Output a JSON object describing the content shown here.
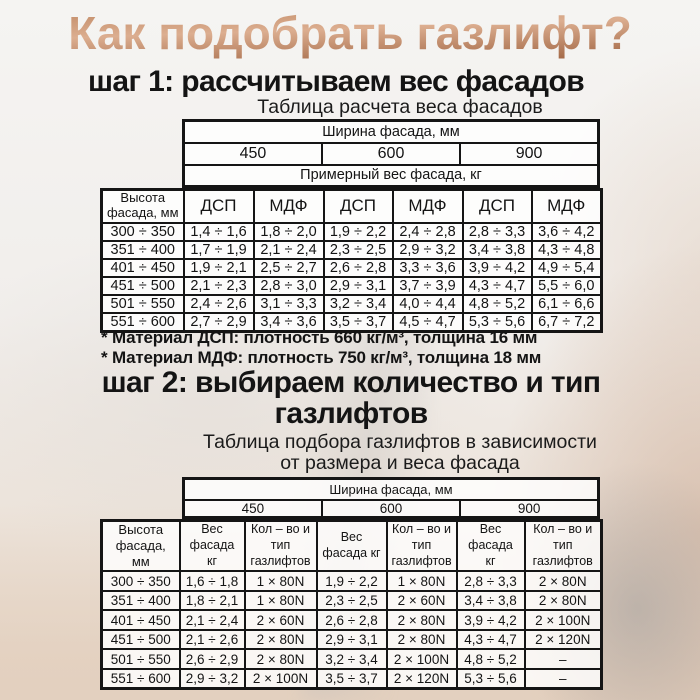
{
  "title": "Как подобрать газлифт?",
  "colors": {
    "title_copper_light": "#dcae90",
    "title_copper_dark": "#a06543",
    "text": "#141414",
    "table_border": "#151515",
    "background_beige": "#e2cfc0"
  },
  "step1": {
    "heading": "шаг 1: рассчитываем вес фасадов",
    "table_title": "Таблица расчета веса фасадов"
  },
  "table1": {
    "width_header": "Ширина фасада, мм",
    "width_values": [
      "450",
      "600",
      "900"
    ],
    "weight_header": "Примерный вес фасада, кг",
    "row_header": "Высота фасада, мм",
    "col_headers": [
      "ДСП",
      "МДФ",
      "ДСП",
      "МДФ",
      "ДСП",
      "МДФ"
    ],
    "rows": [
      {
        "height": "300 ÷ 350",
        "cells": [
          "1,4 ÷ 1,6",
          "1,8 ÷ 2,0",
          "1,9 ÷ 2,2",
          "2,4 ÷ 2,8",
          "2,8 ÷ 3,3",
          "3,6 ÷ 4,2"
        ]
      },
      {
        "height": "351 ÷ 400",
        "cells": [
          "1,7 ÷ 1,9",
          "2,1 ÷ 2,4",
          "2,3 ÷ 2,5",
          "2,9 ÷ 3,2",
          "3,4 ÷ 3,8",
          "4,3 ÷ 4,8"
        ]
      },
      {
        "height": "401 ÷ 450",
        "cells": [
          "1,9 ÷ 2,1",
          "2,5 ÷ 2,7",
          "2,6 ÷ 2,8",
          "3,3 ÷ 3,6",
          "3,9 ÷ 4,2",
          "4,9 ÷ 5,4"
        ]
      },
      {
        "height": "451 ÷ 500",
        "cells": [
          "2,1 ÷ 2,3",
          "2,8 ÷ 3,0",
          "2,9 ÷ 3,1",
          "3,7 ÷ 3,9",
          "4,3 ÷ 4,7",
          "5,5 ÷ 6,0"
        ]
      },
      {
        "height": "501 ÷ 550",
        "cells": [
          "2,4 ÷ 2,6",
          "3,1 ÷ 3,3",
          "3,2 ÷ 3,4",
          "4,0 ÷ 4,4",
          "4,8 ÷ 5,2",
          "6,1 ÷ 6,6"
        ]
      },
      {
        "height": "551 ÷ 600",
        "cells": [
          "2,7 ÷ 2,9",
          "3,4 ÷ 3,6",
          "3,5 ÷ 3,7",
          "4,5 ÷ 4,7",
          "5,3 ÷ 5,6",
          "6,7 ÷ 7,2"
        ]
      }
    ]
  },
  "notes": {
    "line1": "* Материал ДСП: плотность 660 кг/м³, толщина 16 мм",
    "line2": "* Материал МДФ: плотность 750 кг/м³, толщина 18 мм"
  },
  "step2": {
    "heading_line1": "шаг 2: выбираем количество и тип",
    "heading_line2": "газлифтов",
    "table_title_line1": "Таблица подбора газлифтов в зависимости",
    "table_title_line2": "от размера и веса фасада"
  },
  "table2": {
    "width_header": "Ширина фасада, мм",
    "width_values": [
      "450",
      "600",
      "900"
    ],
    "row_header": "Высота фасада, мм",
    "col_headers": [
      "Вес фасада кг",
      "Кол – во и тип газлифтов",
      "Вес фасада кг",
      "Кол – во и тип газлифтов",
      "Вес фасада кг",
      "Кол – во и тип газлифтов"
    ],
    "rows": [
      {
        "height": "300 ÷ 350",
        "cells": [
          "1,6 ÷ 1,8",
          "1 × 80N",
          "1,9 ÷ 2,2",
          "1 × 80N",
          "2,8 ÷ 3,3",
          "2 × 80N"
        ]
      },
      {
        "height": "351 ÷ 400",
        "cells": [
          "1,8 ÷ 2,1",
          "1 × 80N",
          "2,3 ÷ 2,5",
          "2 × 60N",
          "3,4 ÷ 3,8",
          "2 × 80N"
        ]
      },
      {
        "height": "401 ÷ 450",
        "cells": [
          "2,1 ÷ 2,4",
          "2 × 60N",
          "2,6 ÷ 2,8",
          "2 × 80N",
          "3,9 ÷ 4,2",
          "2 × 100N"
        ]
      },
      {
        "height": "451 ÷ 500",
        "cells": [
          "2,1 ÷ 2,6",
          "2 × 80N",
          "2,9 ÷ 3,1",
          "2 × 80N",
          "4,3 ÷ 4,7",
          "2 × 120N"
        ]
      },
      {
        "height": "501 ÷ 550",
        "cells": [
          "2,6 ÷ 2,9",
          "2 × 80N",
          "3,2 ÷ 3,4",
          "2 × 100N",
          "4,8 ÷ 5,2",
          "–"
        ]
      },
      {
        "height": "551 ÷ 600",
        "cells": [
          "2,9 ÷ 3,2",
          "2 × 100N",
          "3,5 ÷ 3,7",
          "2 × 120N",
          "5,3 ÷ 5,6",
          "–"
        ]
      }
    ]
  }
}
